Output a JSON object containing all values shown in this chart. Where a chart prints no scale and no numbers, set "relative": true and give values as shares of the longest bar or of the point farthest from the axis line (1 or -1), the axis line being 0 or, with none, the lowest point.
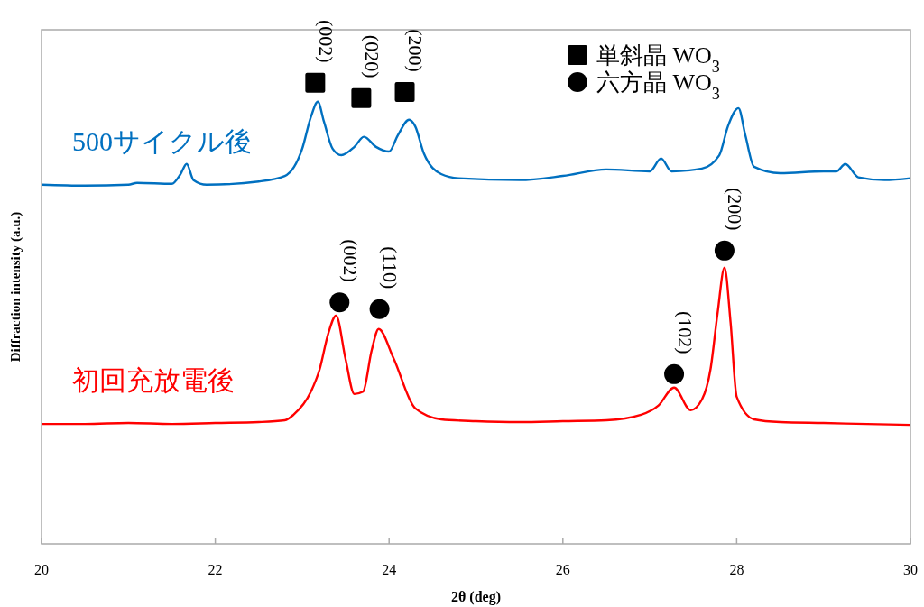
{
  "chart_data": {
    "type": "line",
    "relative": true,
    "xlabel": "2θ (deg)",
    "ylabel": "Diffraction intensity (a.u.)",
    "xlim": [
      20,
      30
    ],
    "xticks": [
      20,
      22,
      24,
      26,
      28,
      30
    ],
    "tick_labels": "x",
    "grid": false,
    "legend": "top right",
    "line_style": "solid",
    "series": [
      {
        "name": "500サイクル後",
        "color": "#0070c0",
        "x": [
          20,
          20.5,
          21,
          21.1,
          21.5,
          21.6,
          21.67,
          21.75,
          21.9,
          22.5,
          22.8,
          23,
          23.1,
          23.18,
          23.25,
          23.35,
          23.45,
          23.6,
          23.71,
          23.85,
          24,
          24.1,
          24.23,
          24.3,
          24.4,
          24.6,
          24.8,
          25.5,
          26,
          26.5,
          27,
          27.13,
          27.25,
          27.6,
          27.8,
          27.9,
          28.02,
          28.1,
          28.2,
          28.5,
          29,
          29.15,
          29.25,
          29.4,
          29.7,
          30
        ],
        "values": [
          0.779,
          0.777,
          0.779,
          0.783,
          0.781,
          0.802,
          0.824,
          0.789,
          0.779,
          0.786,
          0.798,
          0.857,
          0.926,
          0.959,
          0.916,
          0.857,
          0.843,
          0.861,
          0.883,
          0.861,
          0.851,
          0.886,
          0.92,
          0.906,
          0.847,
          0.802,
          0.793,
          0.789,
          0.798,
          0.812,
          0.808,
          0.836,
          0.808,
          0.814,
          0.843,
          0.906,
          0.945,
          0.886,
          0.818,
          0.804,
          0.808,
          0.808,
          0.824,
          0.795,
          0.789,
          0.793
        ]
      },
      {
        "name": "初回充放電後",
        "color": "#ff0000",
        "x": [
          20,
          20.5,
          21,
          21.5,
          22,
          22.5,
          22.8,
          22.9,
          23.1,
          23.2,
          23.3,
          23.39,
          23.5,
          23.6,
          23.7,
          23.8,
          23.88,
          24.05,
          24.3,
          24.6,
          25,
          25.5,
          26,
          26.5,
          26.9,
          27.1,
          27.28,
          27.47,
          27.6,
          27.7,
          27.78,
          27.86,
          27.93,
          28,
          28.2,
          28.5,
          29,
          29.5,
          30
        ],
        "values": [
          0.26,
          0.26,
          0.262,
          0.26,
          0.262,
          0.264,
          0.268,
          0.28,
          0.33,
          0.378,
          0.456,
          0.495,
          0.4,
          0.325,
          0.33,
          0.42,
          0.466,
          0.403,
          0.294,
          0.27,
          0.266,
          0.264,
          0.266,
          0.268,
          0.28,
          0.3,
          0.339,
          0.29,
          0.313,
          0.38,
          0.5,
          0.599,
          0.48,
          0.319,
          0.27,
          0.264,
          0.262,
          0.26,
          0.258
        ]
      },
      {
        "type": "scatter",
        "name": "単斜晶 WO$_{3}$",
        "color": "#000000",
        "marker": "square",
        "x": [
          23.15,
          23.68,
          24.18
        ],
        "values": [
          1.0,
          0.967,
          0.98
        ]
      },
      {
        "type": "scatter",
        "name": "六方晶 WO$_{3}$",
        "color": "#000000",
        "marker": "circle",
        "x": [
          23.43,
          23.89,
          27.28,
          27.86
        ],
        "values": [
          0.524,
          0.509,
          0.368,
          0.636
        ]
      }
    ],
    "annotations": [
      {
        "text": "(002)",
        "x": 23.15,
        "y": 1.0
      },
      {
        "text": "(020)",
        "x": 23.68,
        "y": 0.967
      },
      {
        "text": "(200)",
        "x": 24.18,
        "y": 0.98
      },
      {
        "text": "(002)",
        "x": 23.43,
        "y": 0.524
      },
      {
        "text": "(110)",
        "x": 23.89,
        "y": 0.509
      },
      {
        "text": "(102)",
        "x": 27.28,
        "y": 0.368
      },
      {
        "text": "(200)",
        "x": 27.86,
        "y": 0.636
      }
    ]
  }
}
